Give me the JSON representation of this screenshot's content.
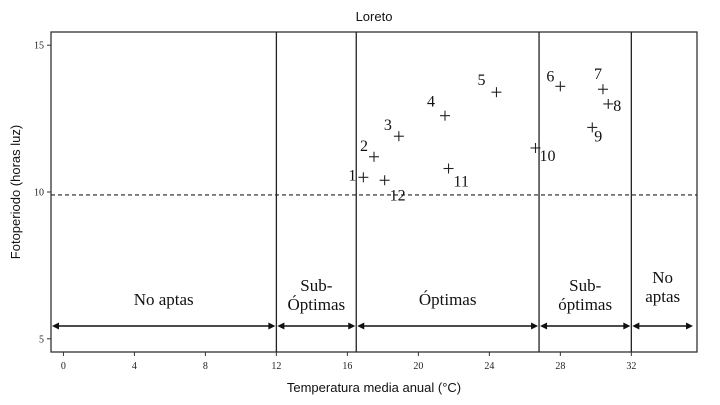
{
  "chart_data": {
    "type": "scatter",
    "title": "Loreto",
    "xlabel": "Temperatura media anual (°C)",
    "ylabel": "Fotoperiodo (horas luz)",
    "xlim": [
      -0.7,
      35.7
    ],
    "ylim": [
      4.55,
      15.45
    ],
    "xticks": [
      0,
      4,
      8,
      12,
      16,
      20,
      24,
      28,
      32
    ],
    "yticks": [
      5,
      10,
      15
    ],
    "grid": false,
    "legend": null,
    "points": [
      {
        "label": "1",
        "x": 16.9,
        "y": 10.5
      },
      {
        "label": "2",
        "x": 17.5,
        "y": 11.2
      },
      {
        "label": "3",
        "x": 18.9,
        "y": 11.9
      },
      {
        "label": "4",
        "x": 21.5,
        "y": 12.6
      },
      {
        "label": "5",
        "x": 24.4,
        "y": 13.4
      },
      {
        "label": "6",
        "x": 28.0,
        "y": 13.6
      },
      {
        "label": "7",
        "x": 30.4,
        "y": 13.5
      },
      {
        "label": "8",
        "x": 30.7,
        "y": 13.0
      },
      {
        "label": "9",
        "x": 29.8,
        "y": 12.2
      },
      {
        "label": "10",
        "x": 26.6,
        "y": 11.5
      },
      {
        "label": "11",
        "x": 21.7,
        "y": 10.8
      },
      {
        "label": "12",
        "x": 18.1,
        "y": 10.4
      }
    ],
    "reference_lines": {
      "horizontal_dashed_y": 9.9,
      "vertical_x": [
        12,
        16.5,
        26.8,
        32
      ]
    },
    "zones": [
      {
        "name": "No aptas",
        "lines": [
          "No aptas"
        ],
        "from": -0.7,
        "to": 12
      },
      {
        "name": "Sub-Óptimas",
        "lines": [
          "Sub-",
          "Óptimas"
        ],
        "from": 12,
        "to": 16.5
      },
      {
        "name": "Óptimas",
        "lines": [
          "Óptimas"
        ],
        "from": 16.5,
        "to": 26.8
      },
      {
        "name": "Sub-óptimas",
        "lines": [
          "Sub-",
          "óptimas"
        ],
        "from": 26.8,
        "to": 32
      },
      {
        "name": "No aptas",
        "lines": [
          "No",
          "aptas"
        ],
        "from": 32,
        "to": 35.7
      }
    ]
  },
  "colors": {
    "axis": "#333333",
    "marker": "#222222",
    "text": "#111111",
    "background": "#ffffff"
  }
}
